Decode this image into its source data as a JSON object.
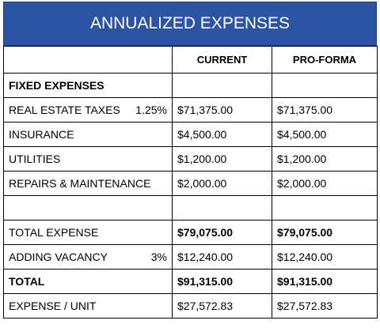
{
  "header": {
    "title": "ANNUALIZED EXPENSES"
  },
  "table": {
    "columns": [
      "CURRENT",
      "PRO-FORMA"
    ],
    "rows": [
      {
        "label": "FIXED EXPENSES"
      },
      {
        "label": "REAL ESTATE TAXES",
        "note": "1.25%",
        "current": "$71,375.00",
        "proforma": "$71,375.00"
      },
      {
        "label": "INSURANCE",
        "current": "$4,500.00",
        "proforma": "$4,500.00"
      },
      {
        "label": "UTILITIES",
        "current": "$1,200.00",
        "proforma": "$1,200.00"
      },
      {
        "label": "REPAIRS & MAINTENANCE",
        "current": "$2,000.00",
        "proforma": "$2,000.00"
      },
      {},
      {
        "label": "TOTAL EXPENSE",
        "current": "$79,075.00",
        "proforma": "$79,075.00"
      },
      {
        "label": "ADDING VACANCY",
        "note": "3%",
        "current": "$12,240.00",
        "proforma": "$12,240.00"
      },
      {
        "label": "TOTAL",
        "current": "$91,315.00",
        "proforma": "$91,315.00"
      },
      {
        "label": "EXPENSE / UNIT",
        "current": "$27,572.83",
        "proforma": "$27,572.83"
      }
    ]
  }
}
